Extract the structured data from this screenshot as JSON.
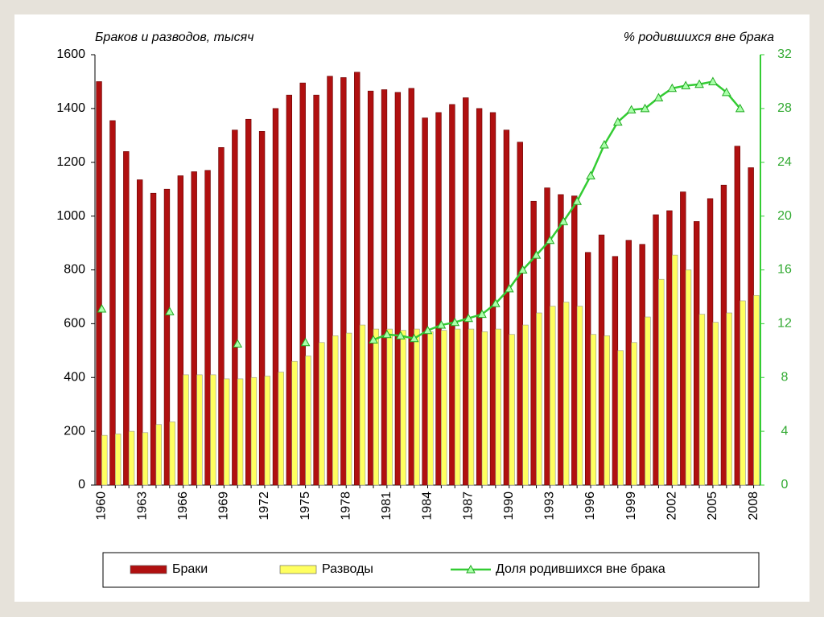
{
  "chart_data": {
    "type": "bar",
    "ylabel": "Браков и разводов, тысяч",
    "y2label": "% родившихся вне брака",
    "categories": [
      "1960",
      null,
      null,
      "1963",
      null,
      null,
      "1966",
      null,
      null,
      "1969",
      null,
      null,
      "1972",
      null,
      null,
      "1975",
      null,
      null,
      "1978",
      null,
      null,
      "1981",
      null,
      null,
      "1984",
      null,
      null,
      "1987",
      null,
      null,
      "1990",
      null,
      null,
      "1993",
      null,
      null,
      "1996",
      null,
      null,
      "1999",
      null,
      null,
      "2002",
      null,
      null,
      "2005",
      null,
      null,
      "2008"
    ],
    "series": [
      {
        "name": "Браки",
        "color": "#b01010",
        "values": [
          1500,
          1355,
          1240,
          1135,
          1085,
          1100,
          1150,
          1165,
          1170,
          1255,
          1320,
          1360,
          1315,
          1400,
          1450,
          1495,
          1450,
          1520,
          1515,
          1535,
          1465,
          1470,
          1460,
          1475,
          1365,
          1385,
          1415,
          1440,
          1400,
          1385,
          1320,
          1275,
          1055,
          1105,
          1080,
          1075,
          865,
          930,
          850,
          910,
          895,
          1005,
          1020,
          1090,
          980,
          1065,
          1115,
          1260,
          1180
        ]
      },
      {
        "name": "Разводы",
        "color": "#ffff60",
        "values": [
          185,
          190,
          200,
          195,
          225,
          235,
          410,
          410,
          410,
          395,
          395,
          400,
          405,
          420,
          460,
          480,
          530,
          555,
          565,
          595,
          580,
          580,
          575,
          580,
          570,
          575,
          580,
          580,
          570,
          580,
          560,
          595,
          640,
          665,
          680,
          665,
          560,
          555,
          500,
          530,
          625,
          765,
          855,
          800,
          635,
          605,
          640,
          685,
          705
        ]
      },
      {
        "name": "Доля родившихся вне брака",
        "color": "#33cc33",
        "axis": "y2",
        "values": [
          13.1,
          null,
          null,
          null,
          null,
          12.9,
          null,
          null,
          null,
          null,
          10.5,
          null,
          null,
          null,
          null,
          10.6,
          null,
          null,
          null,
          null,
          10.8,
          11.2,
          11.1,
          10.9,
          11.5,
          11.9,
          12.1,
          12.4,
          12.7,
          13.5,
          14.6,
          16.0,
          17.1,
          18.2,
          19.6,
          21.1,
          23.0,
          25.3,
          27.0,
          27.9,
          28.0,
          28.8,
          29.5,
          29.7,
          29.8,
          30.0,
          29.2,
          28.0,
          null
        ]
      }
    ],
    "ylim": [
      0,
      1600
    ],
    "yticks": [
      0,
      200,
      400,
      600,
      800,
      1000,
      1200,
      1400,
      1600
    ],
    "y2lim": [
      0,
      32
    ],
    "y2ticks": [
      0,
      4,
      8,
      12,
      16,
      20,
      24,
      28,
      32
    ],
    "grid": false,
    "legend": "bottom"
  }
}
